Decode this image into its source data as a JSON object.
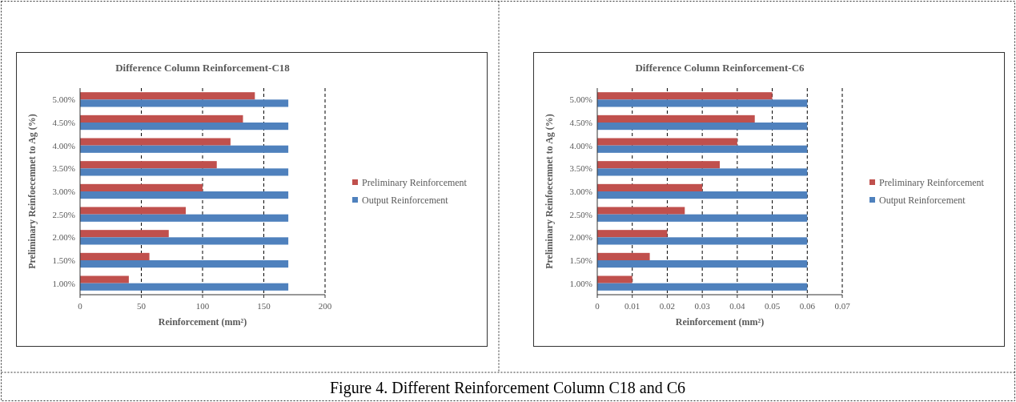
{
  "chart_data": [
    {
      "type": "bar",
      "orientation": "horizontal",
      "title": "Difference Column Reinforcement-C18",
      "xlabel": "Reinforcement (mm²)",
      "ylabel": "Preliminary Reinfoecemnet to Ag (%)",
      "categories": [
        "5.00%",
        "4.50%",
        "4.00%",
        "3.50%",
        "3.00%",
        "2.50%",
        "2.00%",
        "1.50%",
        "1.00%"
      ],
      "series": [
        {
          "name": "Preliminary Reinforcement",
          "color": "#c0504d",
          "values": [
            142.7,
            133,
            122.8,
            111.6,
            100,
            86.3,
            72.4,
            56.6,
            39.8
          ]
        },
        {
          "name": "Output Reinforcement",
          "color": "#4f81bd",
          "values": [
            170,
            170,
            170,
            170,
            170,
            170,
            170,
            170,
            170
          ]
        }
      ],
      "xlim": [
        0,
        200
      ],
      "xticks": [
        0,
        50,
        100,
        150,
        200
      ],
      "grid": "x",
      "legend": "right",
      "annotations": [
        "Figure 4. Different Reinforcement Column C18 and C6"
      ]
    },
    {
      "type": "bar",
      "orientation": "horizontal",
      "title": "Difference Column Reinforcement-C6",
      "xlabel": "Reinforcement (mm²)",
      "ylabel": "Preliminary Reinfoecemnet to Ag (%)",
      "categories": [
        "5.00%",
        "4.50%",
        "4.00%",
        "3.50%",
        "3.00%",
        "2.50%",
        "2.00%",
        "1.50%",
        "1.00%"
      ],
      "series": [
        {
          "name": "Preliminary Reinforcement",
          "color": "#c0504d",
          "values": [
            0.05,
            0.045,
            0.04,
            0.035,
            0.03,
            0.025,
            0.02,
            0.015,
            0.01
          ]
        },
        {
          "name": "Output Reinforcement",
          "color": "#4f81bd",
          "values": [
            0.06,
            0.06,
            0.06,
            0.06,
            0.06,
            0.06,
            0.06,
            0.06,
            0.06
          ]
        }
      ],
      "xlim": [
        0,
        0.07
      ],
      "xticks": [
        0,
        0.01,
        0.02,
        0.03,
        0.04,
        0.05,
        0.06,
        0.07
      ],
      "grid": "x",
      "legend": "right"
    }
  ]
}
